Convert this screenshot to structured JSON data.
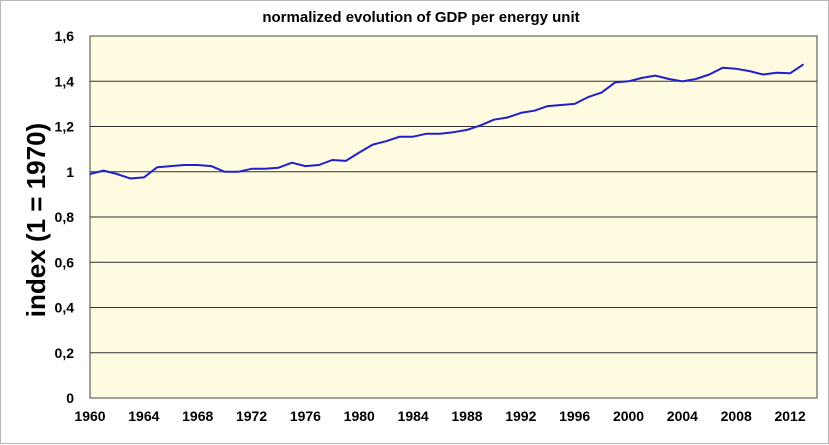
{
  "chart_data": {
    "type": "line",
    "title": "normalized evolution of GDP per energy unit",
    "xlabel": "",
    "ylabel": "index (1 = 1970)",
    "xlim": [
      1960,
      2014
    ],
    "ylim": [
      0,
      1.6
    ],
    "grid": true,
    "legend": "none",
    "colors": {
      "line": "#1f1fcc",
      "plot_background": "#fffbe0",
      "gridline": "#333333"
    },
    "y_ticks": [
      {
        "value": 0,
        "label": "0"
      },
      {
        "value": 0.2,
        "label": "0,2"
      },
      {
        "value": 0.4,
        "label": "0,4"
      },
      {
        "value": 0.6,
        "label": "0,6"
      },
      {
        "value": 0.8,
        "label": "0,8"
      },
      {
        "value": 1,
        "label": "1"
      },
      {
        "value": 1.2,
        "label": "1,2"
      },
      {
        "value": 1.4,
        "label": "1,4"
      },
      {
        "value": 1.6,
        "label": "1,6"
      }
    ],
    "x_ticks": [
      {
        "value": 1960,
        "label": "1960"
      },
      {
        "value": 1964,
        "label": "1964"
      },
      {
        "value": 1968,
        "label": "1968"
      },
      {
        "value": 1972,
        "label": "1972"
      },
      {
        "value": 1976,
        "label": "1976"
      },
      {
        "value": 1980,
        "label": "1980"
      },
      {
        "value": 1984,
        "label": "1984"
      },
      {
        "value": 1988,
        "label": "1988"
      },
      {
        "value": 1992,
        "label": "1992"
      },
      {
        "value": 1996,
        "label": "1996"
      },
      {
        "value": 2000,
        "label": "2000"
      },
      {
        "value": 2004,
        "label": "2004"
      },
      {
        "value": 2008,
        "label": "2008"
      },
      {
        "value": 2012,
        "label": "2012"
      }
    ],
    "series": [
      {
        "x": [
          1960,
          1961,
          1962,
          1963,
          1964,
          1965,
          1966,
          1967,
          1968,
          1969,
          1970,
          1971,
          1972,
          1973,
          1974,
          1975,
          1976,
          1977,
          1978,
          1979,
          1980,
          1981,
          1982,
          1983,
          1984,
          1985,
          1986,
          1987,
          1988,
          1989,
          1990,
          1991,
          1992,
          1993,
          1994,
          1995,
          1996,
          1997,
          1998,
          1999,
          2000,
          2001,
          2002,
          2003,
          2004,
          2005,
          2006,
          2007,
          2008,
          2009,
          2010,
          2011,
          2012,
          2013
        ],
        "values": [
          0.99,
          1.005,
          0.99,
          0.97,
          0.975,
          1.02,
          1.025,
          1.03,
          1.03,
          1.025,
          1.0,
          1.0,
          1.013,
          1.013,
          1.018,
          1.04,
          1.025,
          1.03,
          1.052,
          1.048,
          1.085,
          1.12,
          1.135,
          1.155,
          1.155,
          1.168,
          1.168,
          1.175,
          1.185,
          1.205,
          1.23,
          1.24,
          1.26,
          1.27,
          1.29,
          1.295,
          1.3,
          1.33,
          1.35,
          1.395,
          1.4,
          1.415,
          1.425,
          1.41,
          1.4,
          1.41,
          1.43,
          1.46,
          1.455,
          1.445,
          1.43,
          1.438,
          1.435,
          1.475
        ]
      }
    ]
  }
}
